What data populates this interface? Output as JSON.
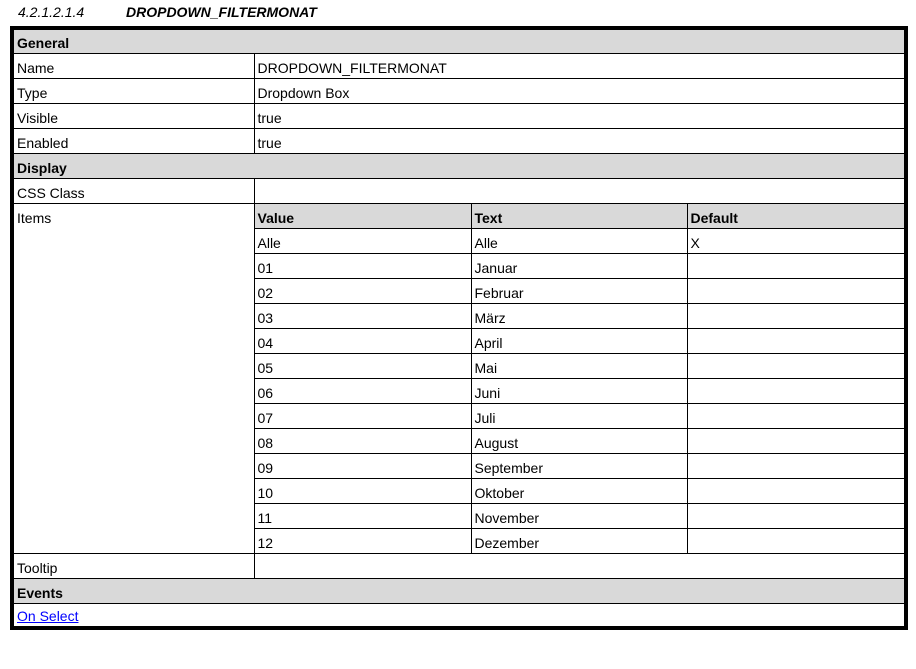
{
  "heading": {
    "number": "4.2.1.2.1.4",
    "title": "DROPDOWN_FILTERMONAT"
  },
  "general": {
    "label": "General",
    "rows": [
      {
        "label": "Name",
        "value": "DROPDOWN_FILTERMONAT"
      },
      {
        "label": "Type",
        "value": "Dropdown Box"
      },
      {
        "label": "Visible",
        "value": "true"
      },
      {
        "label": "Enabled",
        "value": "true"
      }
    ]
  },
  "display": {
    "label": "Display",
    "css_class_label": "CSS Class",
    "css_class_value": "",
    "items_label": "Items",
    "items_headers": [
      "Value",
      "Text",
      "Default"
    ],
    "items": [
      {
        "value": "Alle",
        "text": "Alle",
        "default": "X"
      },
      {
        "value": "01",
        "text": "Januar",
        "default": ""
      },
      {
        "value": "02",
        "text": "Februar",
        "default": ""
      },
      {
        "value": "03",
        "text": "März",
        "default": ""
      },
      {
        "value": "04",
        "text": "April",
        "default": ""
      },
      {
        "value": "05",
        "text": "Mai",
        "default": ""
      },
      {
        "value": "06",
        "text": "Juni",
        "default": ""
      },
      {
        "value": "07",
        "text": "Juli",
        "default": ""
      },
      {
        "value": "08",
        "text": "August",
        "default": ""
      },
      {
        "value": "09",
        "text": "September",
        "default": ""
      },
      {
        "value": "10",
        "text": "Oktober",
        "default": ""
      },
      {
        "value": "11",
        "text": "November",
        "default": ""
      },
      {
        "value": "12",
        "text": "Dezember",
        "default": ""
      }
    ],
    "tooltip_label": "Tooltip",
    "tooltip_value": ""
  },
  "events": {
    "label": "Events",
    "link": "On Select",
    "link_color": "#0000ff"
  }
}
